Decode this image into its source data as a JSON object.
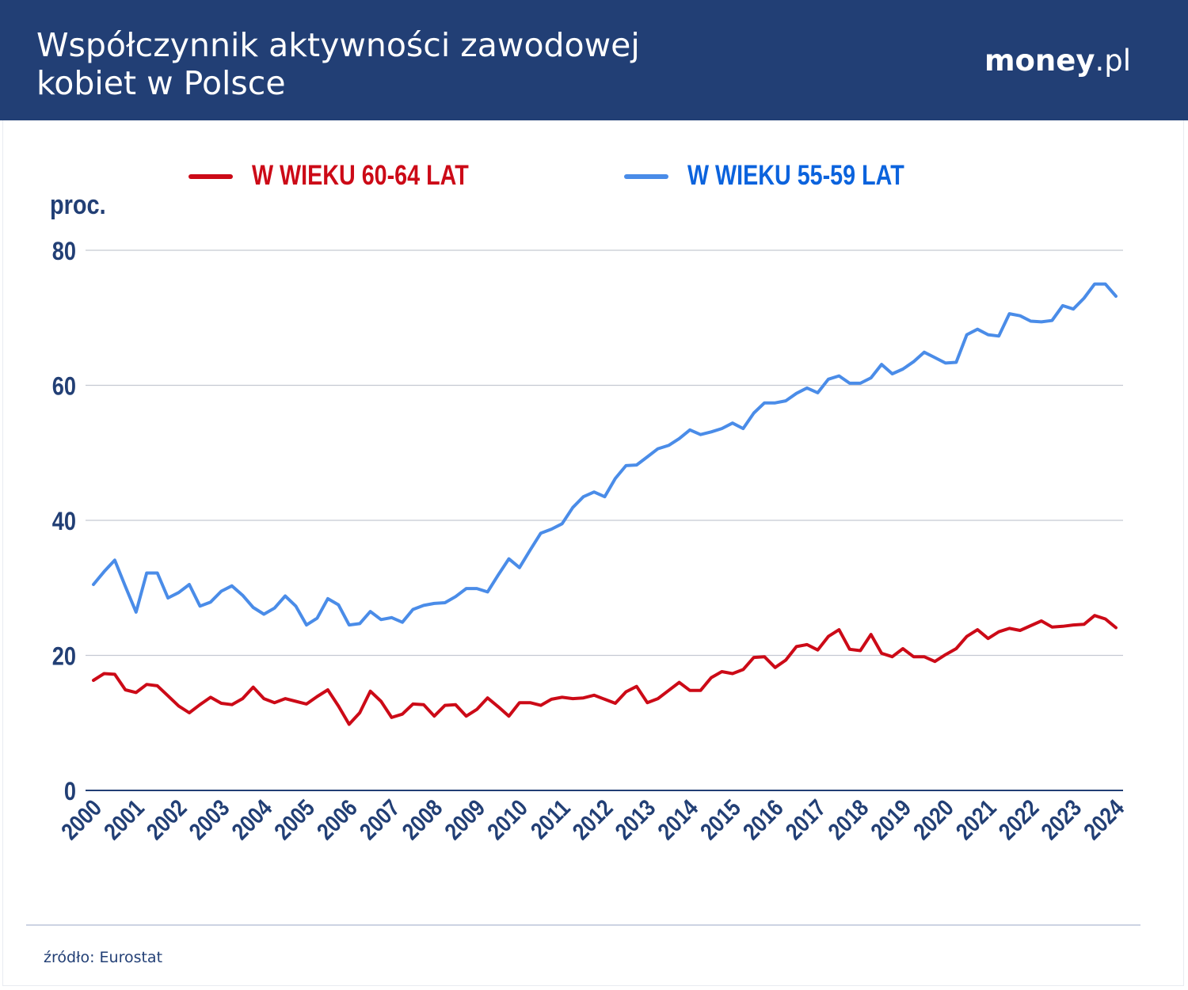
{
  "header": {
    "title_line1": "Współczynnik aktywności zawodowej",
    "title_line2": "kobiet w Polsce",
    "logo_brand": "money",
    "logo_suffix": ".pl"
  },
  "colors": {
    "header_bg": "#223f75",
    "series_60_64": "#cc0a17",
    "series_55_59": "#4a8ce8",
    "axis_text": "#223f75"
  },
  "footer": {
    "source": "źródło: Eurostat"
  },
  "chart_data": {
    "type": "line",
    "title": "Współczynnik aktywności zawodowej kobiet w Polsce",
    "ylabel": "proc.",
    "xlabel": "",
    "ylim": [
      0,
      80
    ],
    "yticks": [
      0,
      20,
      40,
      60,
      80
    ],
    "grid": true,
    "legend_position": "top",
    "x_tick_labels": [
      "2000",
      "2001",
      "2002",
      "2003",
      "2004",
      "2005",
      "2006",
      "2007",
      "2008",
      "2009",
      "2010",
      "2011",
      "2012",
      "2013",
      "2014",
      "2015",
      "2016",
      "2017",
      "2018",
      "2019",
      "2020",
      "2021",
      "2022",
      "2023",
      "2024"
    ],
    "x_frequency": "quarterly",
    "series": [
      {
        "name": "W WIEKU 60-64 LAT",
        "color": "#cc0a17",
        "values": [
          16.3,
          17.3,
          17.2,
          14.9,
          14.5,
          15.7,
          15.5,
          14.0,
          12.5,
          11.5,
          12.7,
          13.8,
          12.9,
          12.7,
          13.6,
          15.3,
          13.6,
          13.0,
          13.6,
          13.2,
          12.8,
          13.9,
          14.9,
          12.5,
          9.8,
          11.5,
          14.7,
          13.2,
          10.8,
          11.3,
          12.8,
          12.7,
          11.0,
          12.6,
          12.7,
          11.0,
          12.0,
          13.7,
          12.4,
          11.0,
          13.0,
          13.0,
          12.6,
          13.5,
          13.8,
          13.6,
          13.7,
          14.1,
          13.5,
          12.9,
          14.6,
          15.4,
          13.0,
          13.6,
          14.8,
          16.0,
          14.8,
          14.8,
          16.7,
          17.6,
          17.3,
          17.9,
          19.7,
          19.8,
          18.2,
          19.3,
          21.3,
          21.6,
          20.8,
          22.8,
          23.8,
          20.9,
          20.7,
          23.1,
          20.3,
          19.8,
          21.0,
          19.8,
          19.8,
          19.1,
          20.1,
          21.0,
          22.8,
          23.8,
          22.5,
          23.5,
          24.0,
          23.7,
          24.4,
          25.1,
          24.2,
          24.3,
          24.5,
          24.6,
          25.9,
          25.4,
          24.1
        ]
      },
      {
        "name": "W WIEKU 55-59 LAT",
        "color": "#4a8ce8",
        "values": [
          30.5,
          32.4,
          34.1,
          30.2,
          26.4,
          32.2,
          32.2,
          28.5,
          29.3,
          30.5,
          27.3,
          27.9,
          29.5,
          30.3,
          28.9,
          27.1,
          26.1,
          27.0,
          28.8,
          27.3,
          24.5,
          25.5,
          28.4,
          27.5,
          24.5,
          24.7,
          26.5,
          25.3,
          25.6,
          24.9,
          26.8,
          27.4,
          27.7,
          27.8,
          28.7,
          29.9,
          29.9,
          29.4,
          31.9,
          34.3,
          33.0,
          35.6,
          38.1,
          38.7,
          39.5,
          41.9,
          43.5,
          44.2,
          43.5,
          46.2,
          48.1,
          48.2,
          49.4,
          50.6,
          51.1,
          52.1,
          53.4,
          52.7,
          53.1,
          53.6,
          54.4,
          53.6,
          55.9,
          57.4,
          57.4,
          57.7,
          58.8,
          59.6,
          58.9,
          60.9,
          61.4,
          60.3,
          60.3,
          61.1,
          63.1,
          61.7,
          62.4,
          63.5,
          64.9,
          64.1,
          63.3,
          63.4,
          67.5,
          68.3,
          67.5,
          67.3,
          70.6,
          70.3,
          69.5,
          69.4,
          69.6,
          71.8,
          71.3,
          72.9,
          75.0,
          75.0,
          73.2
        ]
      }
    ]
  }
}
